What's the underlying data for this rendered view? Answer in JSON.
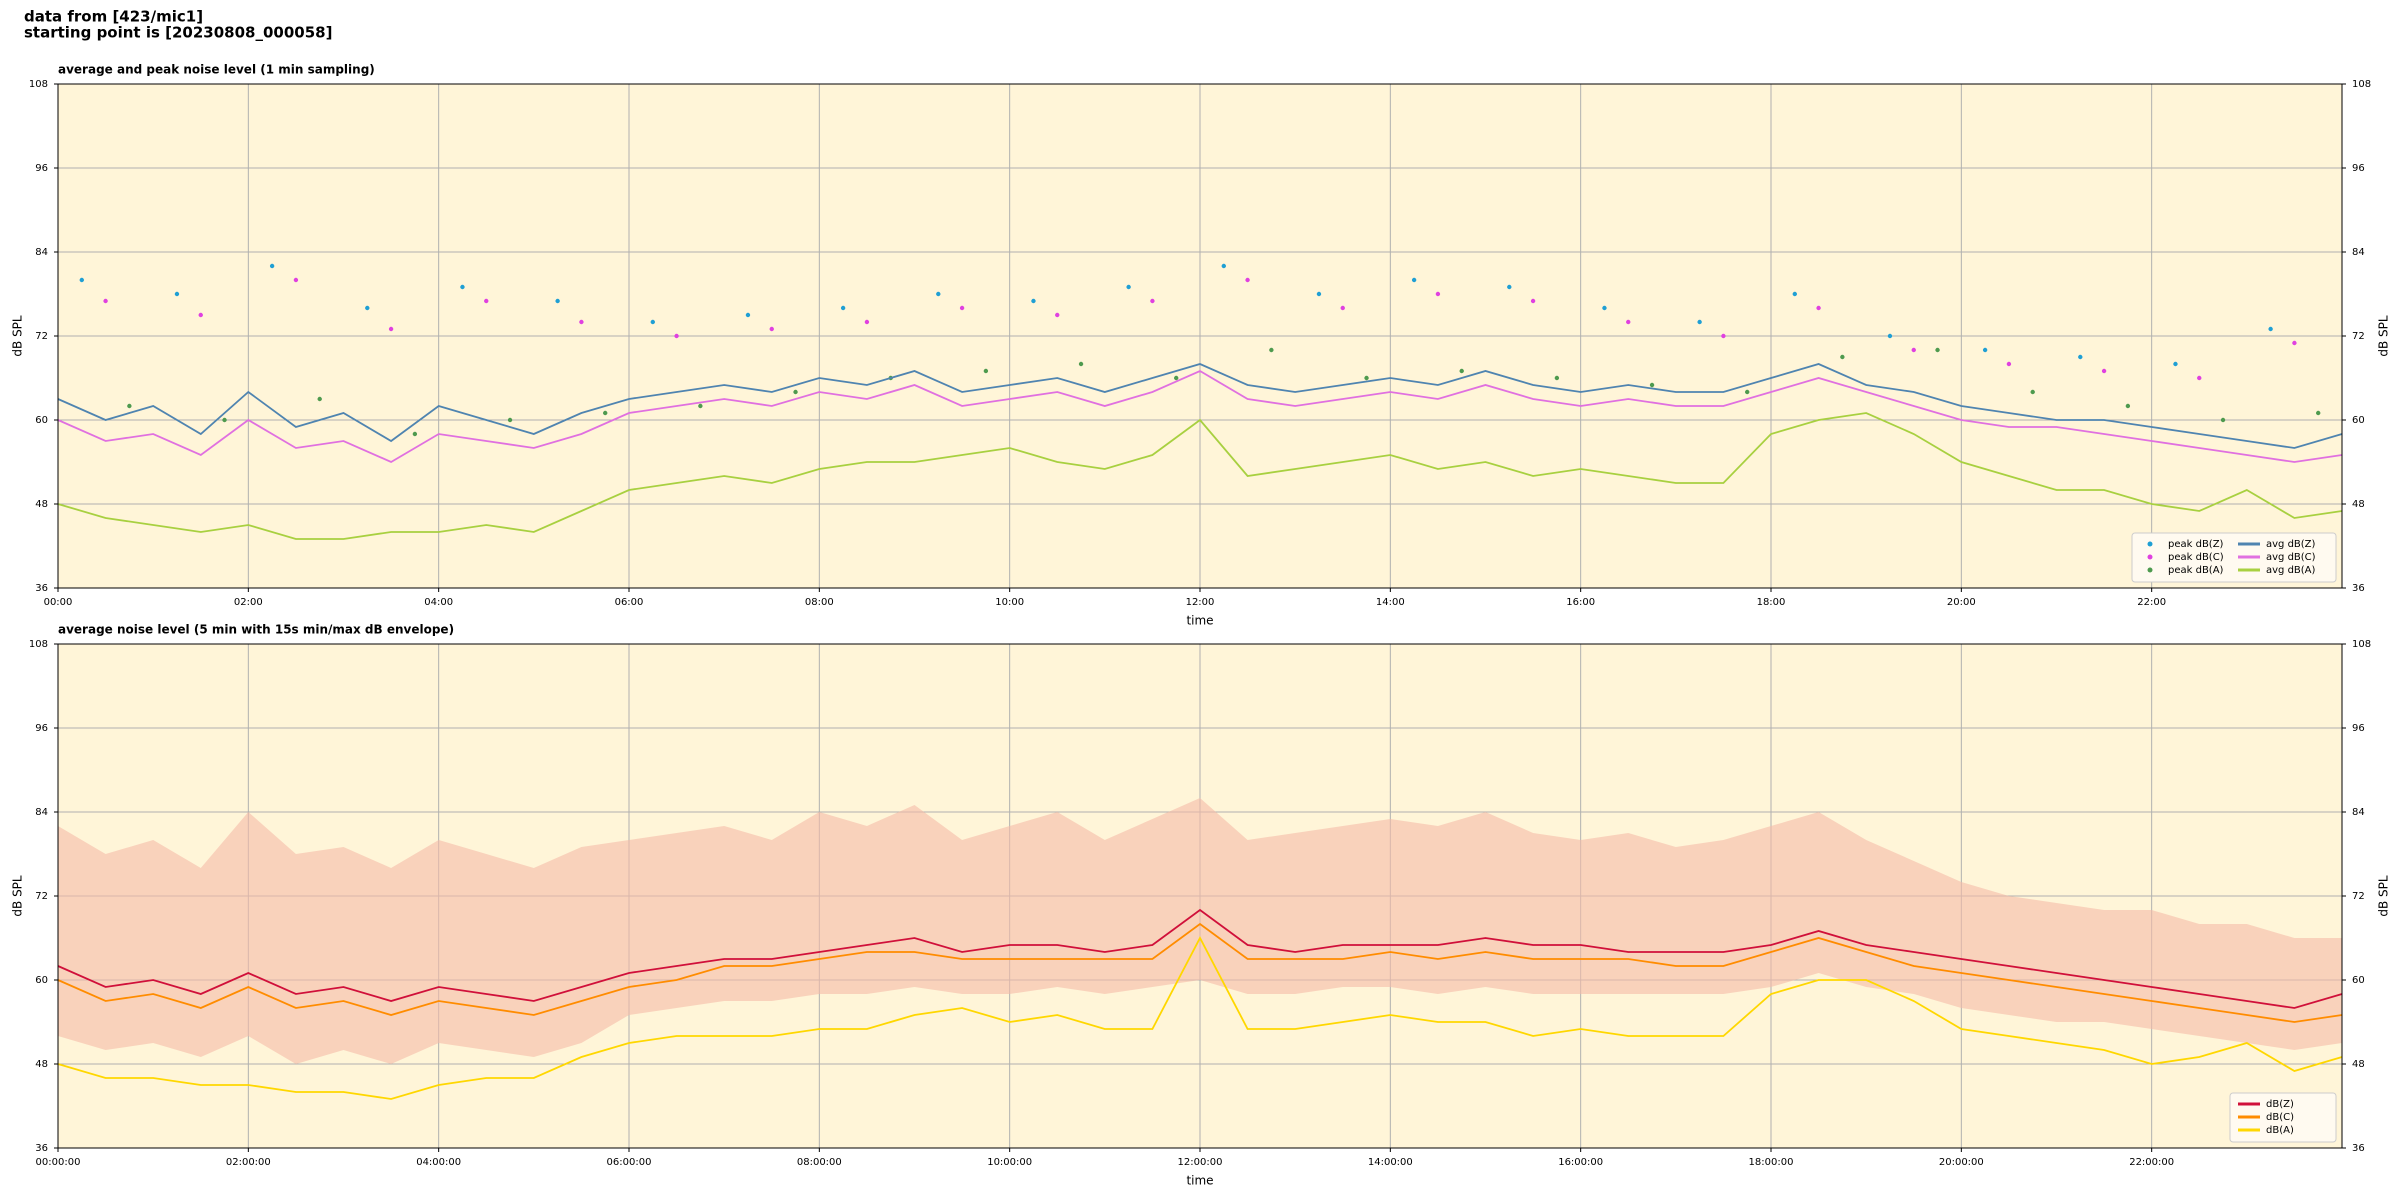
{
  "header": {
    "line1": "data from [423/mic1]",
    "line2": "starting point is [20230808_000058]"
  },
  "chart_data": [
    {
      "type": "line",
      "title": "average and peak noise level (1 min sampling)",
      "xlabel": "time",
      "ylabel": "dB SPL",
      "xlim": [
        0,
        24
      ],
      "ylim": [
        36,
        108
      ],
      "yticks": [
        36,
        48,
        60,
        72,
        84,
        96,
        108
      ],
      "xticks": [
        {
          "value": 0,
          "label": "00:00"
        },
        {
          "value": 2,
          "label": "02:00"
        },
        {
          "value": 4,
          "label": "04:00"
        },
        {
          "value": 6,
          "label": "06:00"
        },
        {
          "value": 8,
          "label": "08:00"
        },
        {
          "value": 10,
          "label": "10:00"
        },
        {
          "value": 12,
          "label": "12:00"
        },
        {
          "value": 14,
          "label": "14:00"
        },
        {
          "value": 16,
          "label": "16:00"
        },
        {
          "value": 18,
          "label": "18:00"
        },
        {
          "value": 20,
          "label": "20:00"
        },
        {
          "value": 22,
          "label": "22:00"
        }
      ],
      "grid": true,
      "background": "#fff5d8",
      "legend": {
        "loc": "lower right",
        "ncol": 2
      },
      "x": [
        0,
        0.5,
        1,
        1.5,
        2,
        2.5,
        3,
        3.5,
        4,
        4.5,
        5,
        5.5,
        6,
        6.5,
        7,
        7.5,
        8,
        8.5,
        9,
        9.5,
        10,
        10.5,
        11,
        11.5,
        12,
        12.5,
        13,
        13.5,
        14,
        14.5,
        15,
        15.5,
        16,
        16.5,
        17,
        17.5,
        18,
        18.5,
        19,
        19.5,
        20,
        20.5,
        21,
        21.5,
        22,
        22.5,
        23,
        23.5,
        24
      ],
      "series": [
        {
          "name": "peak dB(Z)",
          "style": "markers",
          "color": "#1f9fd4",
          "x": [
            0.25,
            1.25,
            2.25,
            3.25,
            4.25,
            5.25,
            6.25,
            7.25,
            8.25,
            9.25,
            10.25,
            11.25,
            12.25,
            13.25,
            14.25,
            15.25,
            16.25,
            17.25,
            18.25,
            19.25,
            20.25,
            21.25,
            22.25,
            23.25
          ],
          "values": [
            80,
            78,
            82,
            76,
            79,
            77,
            74,
            75,
            76,
            78,
            77,
            79,
            82,
            78,
            80,
            79,
            76,
            74,
            78,
            72,
            70,
            69,
            68,
            73
          ]
        },
        {
          "name": "peak dB(C)",
          "style": "markers",
          "color": "#e040e0",
          "x": [
            0.5,
            1.5,
            2.5,
            3.5,
            4.5,
            5.5,
            6.5,
            7.5,
            8.5,
            9.5,
            10.5,
            11.5,
            12.5,
            13.5,
            14.5,
            15.5,
            16.5,
            17.5,
            18.5,
            19.5,
            20.5,
            21.5,
            22.5,
            23.5
          ],
          "values": [
            77,
            75,
            80,
            73,
            77,
            74,
            72,
            73,
            74,
            76,
            75,
            77,
            80,
            76,
            78,
            77,
            74,
            72,
            76,
            70,
            68,
            67,
            66,
            71
          ]
        },
        {
          "name": "peak dB(A)",
          "style": "markers",
          "color": "#4e9a4e",
          "x": [
            0.75,
            1.75,
            2.75,
            3.75,
            4.75,
            5.75,
            6.75,
            7.75,
            8.75,
            9.75,
            10.75,
            11.75,
            12.75,
            13.75,
            14.75,
            15.75,
            16.75,
            17.75,
            18.75,
            19.75,
            20.75,
            21.75,
            22.75,
            23.75
          ],
          "values": [
            62,
            60,
            63,
            58,
            60,
            61,
            62,
            64,
            66,
            67,
            68,
            66,
            70,
            66,
            67,
            66,
            65,
            64,
            69,
            70,
            64,
            62,
            60,
            61
          ]
        },
        {
          "name": "avg dB(Z)",
          "style": "line",
          "color": "#4f84b0",
          "values": [
            63,
            60,
            62,
            58,
            64,
            59,
            61,
            57,
            62,
            60,
            58,
            61,
            63,
            64,
            65,
            64,
            66,
            65,
            67,
            64,
            65,
            66,
            64,
            66,
            68,
            65,
            64,
            65,
            66,
            65,
            67,
            65,
            64,
            65,
            64,
            64,
            66,
            68,
            65,
            64,
            62,
            61,
            60,
            60,
            59,
            58,
            57,
            56,
            58
          ]
        },
        {
          "name": "avg dB(C)",
          "style": "line",
          "color": "#e070e0",
          "values": [
            60,
            57,
            58,
            55,
            60,
            56,
            57,
            54,
            58,
            57,
            56,
            58,
            61,
            62,
            63,
            62,
            64,
            63,
            65,
            62,
            63,
            64,
            62,
            64,
            67,
            63,
            62,
            63,
            64,
            63,
            65,
            63,
            62,
            63,
            62,
            62,
            64,
            66,
            64,
            62,
            60,
            59,
            59,
            58,
            57,
            56,
            55,
            54,
            55
          ]
        },
        {
          "name": "avg dB(A)",
          "style": "line",
          "color": "#a8d040",
          "values": [
            48,
            46,
            45,
            44,
            45,
            43,
            43,
            44,
            44,
            45,
            44,
            47,
            50,
            51,
            52,
            51,
            53,
            54,
            54,
            55,
            56,
            54,
            53,
            55,
            60,
            52,
            53,
            54,
            55,
            53,
            54,
            52,
            53,
            52,
            51,
            51,
            58,
            60,
            61,
            58,
            54,
            52,
            50,
            50,
            48,
            47,
            50,
            46,
            47
          ]
        }
      ]
    },
    {
      "type": "line",
      "title": "average noise level (5 min with 15s min/max dB envelope)",
      "xlabel": "time",
      "ylabel": "dB SPL",
      "xlim": [
        0,
        24
      ],
      "ylim": [
        36,
        108
      ],
      "yticks": [
        36,
        48,
        60,
        72,
        84,
        96,
        108
      ],
      "xticks": [
        {
          "value": 0,
          "label": "00:00:00"
        },
        {
          "value": 2,
          "label": "02:00:00"
        },
        {
          "value": 4,
          "label": "04:00:00"
        },
        {
          "value": 6,
          "label": "06:00:00"
        },
        {
          "value": 8,
          "label": "08:00:00"
        },
        {
          "value": 10,
          "label": "10:00:00"
        },
        {
          "value": 12,
          "label": "12:00:00"
        },
        {
          "value": 14,
          "label": "14:00:00"
        },
        {
          "value": 16,
          "label": "16:00:00"
        },
        {
          "value": 18,
          "label": "18:00:00"
        },
        {
          "value": 20,
          "label": "20:00:00"
        },
        {
          "value": 22,
          "label": "22:00:00"
        }
      ],
      "grid": true,
      "background": "#fff5d8",
      "legend": {
        "loc": "lower right",
        "ncol": 1
      },
      "x": [
        0,
        0.5,
        1,
        1.5,
        2,
        2.5,
        3,
        3.5,
        4,
        4.5,
        5,
        5.5,
        6,
        6.5,
        7,
        7.5,
        8,
        8.5,
        9,
        9.5,
        10,
        10.5,
        11,
        11.5,
        12,
        12.5,
        13,
        13.5,
        14,
        14.5,
        15,
        15.5,
        16,
        16.5,
        17,
        17.5,
        18,
        18.5,
        19,
        19.5,
        20,
        20.5,
        21,
        21.5,
        22,
        22.5,
        23,
        23.5,
        24
      ],
      "envelope": {
        "color": "#f5bba8",
        "lower": [
          52,
          50,
          51,
          49,
          52,
          48,
          50,
          48,
          51,
          50,
          49,
          51,
          55,
          56,
          57,
          57,
          58,
          58,
          59,
          58,
          58,
          59,
          58,
          59,
          60,
          58,
          58,
          59,
          59,
          58,
          59,
          58,
          58,
          58,
          58,
          58,
          59,
          61,
          59,
          58,
          56,
          55,
          54,
          54,
          53,
          52,
          51,
          50,
          51
        ],
        "upper": [
          82,
          78,
          80,
          76,
          84,
          78,
          79,
          76,
          80,
          78,
          76,
          79,
          80,
          81,
          82,
          80,
          84,
          82,
          85,
          80,
          82,
          84,
          80,
          83,
          86,
          80,
          81,
          82,
          83,
          82,
          84,
          81,
          80,
          81,
          79,
          80,
          82,
          84,
          80,
          77,
          74,
          72,
          71,
          70,
          70,
          68,
          68,
          66,
          66
        ]
      },
      "series": [
        {
          "name": "dB(Z)",
          "style": "line",
          "color": "#d0103a",
          "values": [
            62,
            59,
            60,
            58,
            61,
            58,
            59,
            57,
            59,
            58,
            57,
            59,
            61,
            62,
            63,
            63,
            64,
            65,
            66,
            64,
            65,
            65,
            64,
            65,
            70,
            65,
            64,
            65,
            65,
            65,
            66,
            65,
            65,
            64,
            64,
            64,
            65,
            67,
            65,
            64,
            63,
            62,
            61,
            60,
            59,
            58,
            57,
            56,
            58
          ]
        },
        {
          "name": "dB(C)",
          "style": "line",
          "color": "#ff8c00",
          "values": [
            60,
            57,
            58,
            56,
            59,
            56,
            57,
            55,
            57,
            56,
            55,
            57,
            59,
            60,
            62,
            62,
            63,
            64,
            64,
            63,
            63,
            63,
            63,
            63,
            68,
            63,
            63,
            63,
            64,
            63,
            64,
            63,
            63,
            63,
            62,
            62,
            64,
            66,
            64,
            62,
            61,
            60,
            59,
            58,
            57,
            56,
            55,
            54,
            55
          ]
        },
        {
          "name": "dB(A)",
          "style": "line",
          "color": "#ffd700",
          "values": [
            48,
            46,
            46,
            45,
            45,
            44,
            44,
            43,
            45,
            46,
            46,
            49,
            51,
            52,
            52,
            52,
            53,
            53,
            55,
            56,
            54,
            55,
            53,
            53,
            66,
            53,
            53,
            54,
            55,
            54,
            54,
            52,
            53,
            52,
            52,
            52,
            58,
            60,
            60,
            57,
            53,
            52,
            51,
            50,
            48,
            49,
            51,
            47,
            49
          ]
        }
      ]
    }
  ]
}
